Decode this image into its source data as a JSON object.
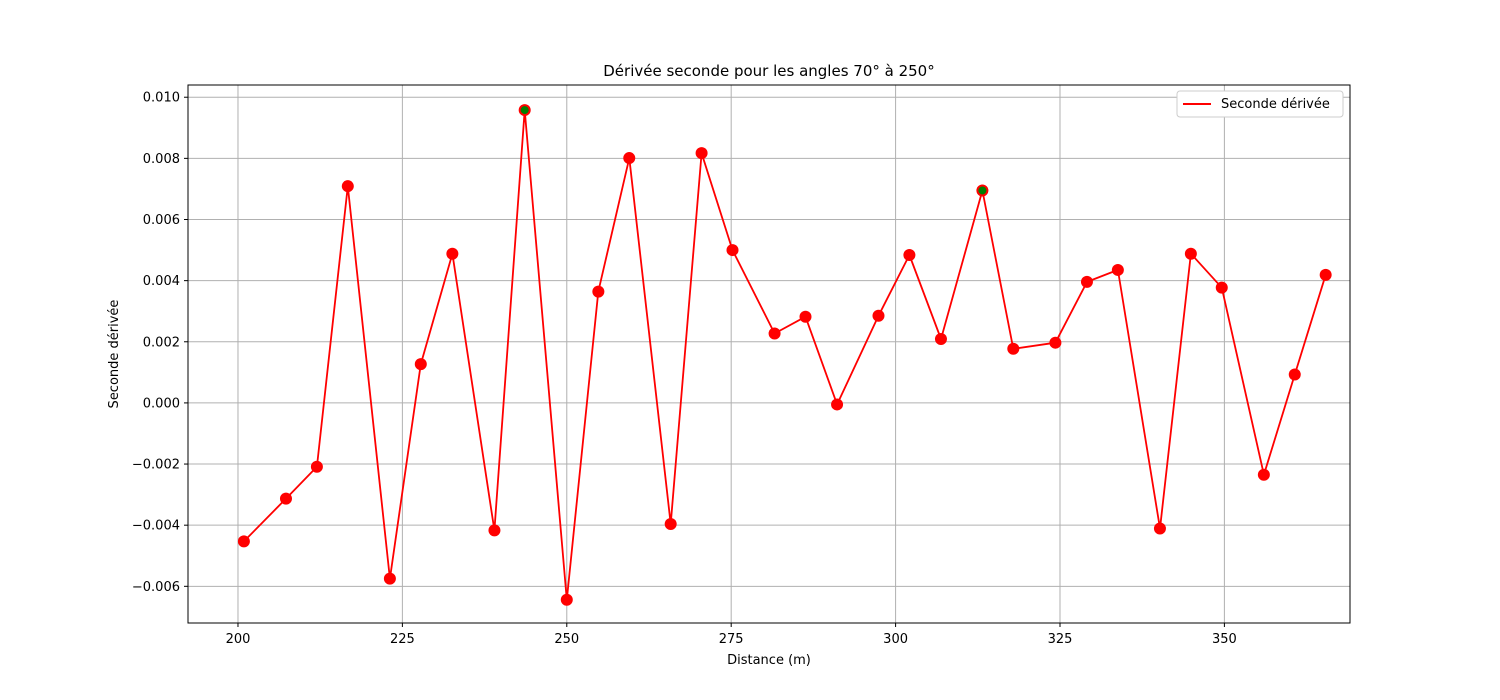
{
  "chart_data": {
    "type": "line",
    "title": "Dérivée seconde pour les angles 70° à 250°",
    "xlabel": "Distance (m)",
    "ylabel": "Seconde dérivée",
    "xlim": [
      192.4,
      369.1
    ],
    "ylim": [
      -0.0072,
      0.0104
    ],
    "xticks": [
      200,
      225,
      250,
      275,
      300,
      325,
      350
    ],
    "yticks": [
      -0.006,
      -0.004,
      -0.002,
      0.0,
      0.002,
      0.004,
      0.006,
      0.008,
      0.01
    ],
    "ytick_labels": [
      "−0.006",
      "−0.004",
      "−0.002",
      "0.000",
      "0.002",
      "0.004",
      "0.006",
      "0.008",
      "0.010"
    ],
    "grid": true,
    "legend_position": "top-right",
    "series": [
      {
        "name": "Seconde dérivée",
        "color": "#ff0000",
        "marker_color": "#ff0000",
        "x": [
          200.9,
          207.3,
          212.0,
          216.7,
          223.1,
          227.8,
          232.6,
          239.0,
          243.6,
          250.0,
          254.8,
          259.5,
          265.8,
          270.5,
          275.2,
          281.6,
          286.3,
          291.1,
          297.4,
          302.1,
          306.9,
          313.2,
          317.9,
          324.3,
          329.1,
          333.8,
          340.2,
          344.9,
          349.6,
          356.0,
          360.7,
          365.4
        ],
        "y": [
          -0.00453,
          -0.00313,
          -0.00209,
          0.00709,
          -0.00575,
          0.00127,
          0.00488,
          -0.00417,
          0.00958,
          -0.00644,
          0.00364,
          0.00801,
          -0.00396,
          0.00817,
          0.005,
          0.00227,
          0.00282,
          -5e-05,
          0.00285,
          0.00484,
          0.00209,
          0.00695,
          0.00177,
          0.00197,
          0.00396,
          0.00435,
          -0.00411,
          0.00488,
          0.00377,
          -0.00235,
          0.00093,
          0.00419
        ]
      }
    ],
    "highlight_points": {
      "color": "#008000",
      "x": [
        243.6,
        313.2
      ],
      "y": [
        0.00958,
        0.00695
      ]
    }
  }
}
